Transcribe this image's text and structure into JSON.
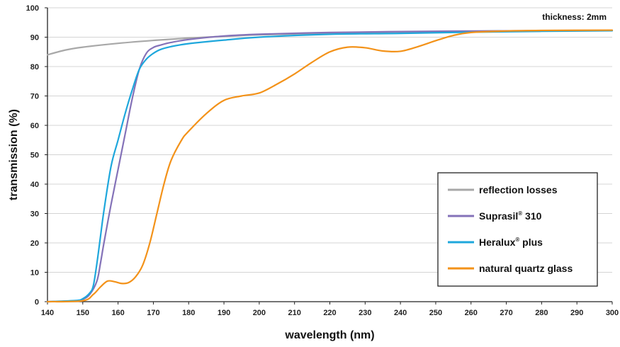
{
  "chart_data": {
    "type": "line",
    "title": "",
    "annotation": "thickness: 2mm",
    "xlabel": "wavelength (nm)",
    "ylabel": "transmission (%)",
    "xlim": [
      140,
      300
    ],
    "ylim": [
      0,
      100
    ],
    "xticks": [
      140,
      150,
      160,
      170,
      180,
      190,
      200,
      210,
      220,
      230,
      240,
      250,
      260,
      270,
      280,
      290,
      300
    ],
    "yticks": [
      0,
      10,
      20,
      30,
      40,
      50,
      60,
      70,
      80,
      90,
      100
    ],
    "grid": "horizontal",
    "legend_position": "bottom-right",
    "series": [
      {
        "name": "reflection losses",
        "color": "#a8a8a8",
        "x": [
          140,
          145,
          150,
          160,
          170,
          180,
          190,
          200,
          220,
          240,
          260,
          280,
          300
        ],
        "y": [
          84,
          85.6,
          86.6,
          87.9,
          88.9,
          89.7,
          90.3,
          90.8,
          91.4,
          91.8,
          92.0,
          92.2,
          92.3
        ]
      },
      {
        "name": "Suprasil",
        "name_suffix": " 310",
        "registered": true,
        "color": "#8472b8",
        "x": [
          140,
          148,
          150,
          152,
          154,
          155,
          156,
          158,
          160,
          162,
          164,
          166,
          168,
          170,
          172,
          175,
          180,
          190,
          200,
          220,
          240,
          260,
          280,
          300
        ],
        "y": [
          0,
          0.3,
          0.8,
          2.5,
          7,
          13,
          20,
          33,
          45,
          57,
          69,
          79,
          84.5,
          86.5,
          87.3,
          88.2,
          89.2,
          90.4,
          91,
          91.6,
          91.9,
          92.1,
          92.2,
          92.3
        ]
      },
      {
        "name": "Heralux",
        "name_suffix": " plus",
        "registered": true,
        "color": "#1ea7dc",
        "x": [
          140,
          148,
          150,
          152,
          153,
          154,
          155,
          156,
          158,
          160,
          162,
          164,
          166,
          168,
          170,
          172,
          175,
          180,
          190,
          200,
          220,
          240,
          260,
          280,
          300
        ],
        "y": [
          0,
          0.4,
          1,
          3,
          5.5,
          13,
          22,
          31,
          46,
          55,
          64,
          72,
          79,
          82.5,
          84.5,
          85.8,
          86.8,
          87.8,
          89,
          90,
          91,
          91.3,
          91.7,
          92,
          92.2
        ]
      },
      {
        "name": "natural quartz glass",
        "color": "#f39219",
        "x": [
          140,
          150,
          153,
          155,
          157,
          159,
          161,
          163,
          165,
          167,
          169,
          171,
          173,
          175,
          178,
          180,
          185,
          190,
          195,
          200,
          205,
          210,
          215,
          220,
          225,
          230,
          235,
          240,
          245,
          250,
          255,
          260,
          270,
          280,
          300
        ],
        "y": [
          0,
          0.3,
          2.5,
          5,
          7,
          6.8,
          6.2,
          6.5,
          8.5,
          12.5,
          20,
          30,
          40,
          48,
          55,
          58,
          64,
          68.5,
          70,
          71,
          74,
          77.5,
          81.5,
          85,
          86.6,
          86.4,
          85.3,
          85.2,
          86.8,
          88.8,
          90.6,
          91.6,
          92.1,
          92.3,
          92.4
        ]
      }
    ]
  }
}
